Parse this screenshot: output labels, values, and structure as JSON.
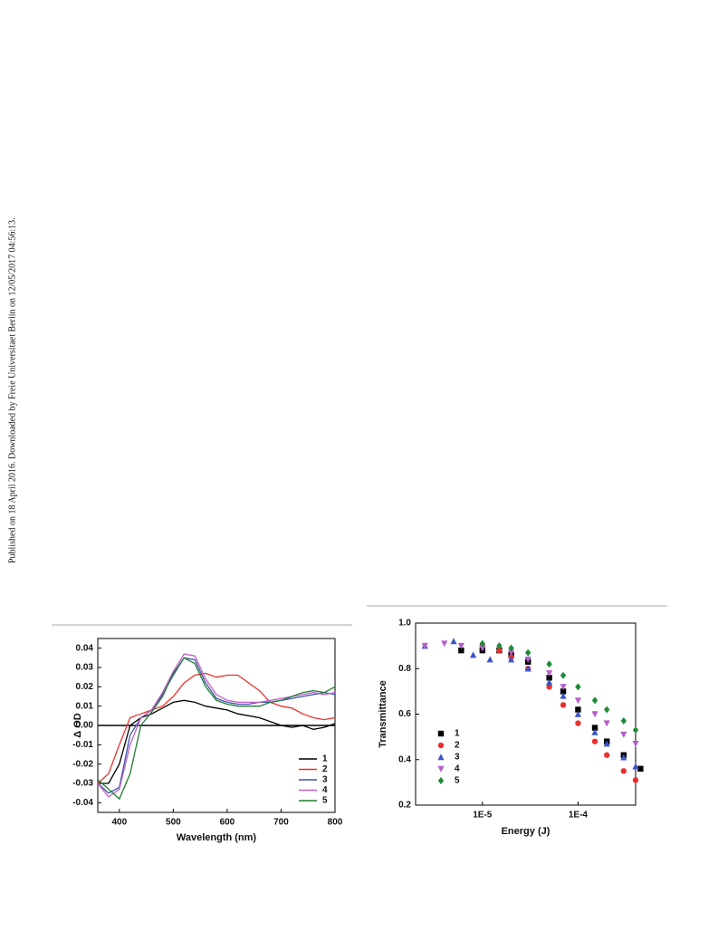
{
  "side_note": "Published on 18 April 2016. Downloaded by Freie Universitaet Berlin on 12/05/2017 04:56:13.",
  "chart_data": [
    {
      "type": "line",
      "x_label": "Wavelength (nm)",
      "y_label": "Δ OD",
      "x": [
        360,
        380,
        400,
        420,
        440,
        460,
        480,
        500,
        520,
        540,
        560,
        580,
        600,
        620,
        640,
        660,
        680,
        700,
        720,
        740,
        760,
        780,
        800
      ],
      "xlim": [
        360,
        800
      ],
      "xticks": [
        400,
        500,
        600,
        700,
        800
      ],
      "ylim": [
        -0.045,
        0.045
      ],
      "yticks": [
        -0.04,
        -0.03,
        -0.02,
        -0.01,
        {
          "value": 0,
          "label": "0.00"
        },
        0.01,
        0.02,
        0.03,
        0.04
      ],
      "zero_line": true,
      "series": [
        {
          "name": "1",
          "color": "#000000",
          "values": [
            -0.03,
            -0.03,
            -0.02,
            0,
            0.004,
            0.006,
            0.009,
            0.012,
            0.013,
            0.012,
            0.01,
            0.009,
            0.008,
            0.006,
            0.005,
            0.004,
            0.002,
            0,
            -0.001,
            0,
            -0.002,
            -0.001,
            0.001
          ]
        },
        {
          "name": "2",
          "color": "#e8312f",
          "values": [
            -0.03,
            -0.025,
            -0.01,
            0.004,
            0.006,
            0.008,
            0.01,
            0.015,
            0.022,
            0.026,
            0.027,
            0.025,
            0.026,
            0.026,
            0.022,
            0.018,
            0.012,
            0.01,
            0.009,
            0.006,
            0.004,
            0.003,
            0.004
          ]
        },
        {
          "name": "3",
          "color": "#3b55a8",
          "values": [
            -0.03,
            -0.035,
            -0.032,
            -0.005,
            0.004,
            0.008,
            0.016,
            0.026,
            0.035,
            0.034,
            0.022,
            0.014,
            0.012,
            0.011,
            0.011,
            0.012,
            0.012,
            0.013,
            0.014,
            0.015,
            0.016,
            0.017,
            0.016
          ]
        },
        {
          "name": "4",
          "color": "#c25ec9",
          "values": [
            -0.03,
            -0.037,
            -0.033,
            -0.01,
            0.004,
            0.008,
            0.017,
            0.028,
            0.037,
            0.036,
            0.024,
            0.016,
            0.013,
            0.012,
            0.012,
            0.012,
            0.013,
            0.014,
            0.015,
            0.016,
            0.017,
            0.016,
            0.017
          ]
        },
        {
          "name": "5",
          "color": "#1f7d2f",
          "values": [
            -0.028,
            -0.033,
            -0.038,
            -0.025,
            0,
            0.007,
            0.015,
            0.027,
            0.035,
            0.032,
            0.02,
            0.013,
            0.011,
            0.01,
            0.01,
            0.01,
            0.012,
            0.013,
            0.015,
            0.017,
            0.018,
            0.017,
            0.02
          ]
        }
      ]
    },
    {
      "type": "scatter",
      "x_label": "Energy (J)",
      "y_label": "Transmittance",
      "xscale": "log",
      "xlim": [
        2e-06,
        0.0004
      ],
      "xticks": [
        {
          "value": 1e-05,
          "label": "1E-5"
        },
        {
          "value": 0.0001,
          "label": "1E-4"
        }
      ],
      "ylim": [
        0.2,
        1.0
      ],
      "yticks": [
        0.2,
        0.4,
        0.6,
        0.8,
        {
          "value": 1.0,
          "label": "1.0"
        }
      ],
      "series": [
        {
          "name": "1",
          "color": "#000000",
          "marker": "square",
          "x": [
            6e-06,
            1e-05,
            1.5e-05,
            2e-05,
            3e-05,
            5e-05,
            7e-05,
            0.0001,
            0.00015,
            0.0002,
            0.0003,
            0.00045
          ],
          "values": [
            0.88,
            0.88,
            0.88,
            0.86,
            0.83,
            0.76,
            0.7,
            0.62,
            0.54,
            0.48,
            0.42,
            0.36
          ]
        },
        {
          "name": "2",
          "color": "#e8312f",
          "marker": "circle",
          "x": [
            1e-05,
            1.5e-05,
            2e-05,
            3e-05,
            5e-05,
            7e-05,
            0.0001,
            0.00015,
            0.0002,
            0.0003,
            0.0004
          ],
          "values": [
            0.9,
            0.88,
            0.85,
            0.8,
            0.72,
            0.64,
            0.56,
            0.48,
            0.42,
            0.35,
            0.31
          ]
        },
        {
          "name": "3",
          "color": "#3b55c8",
          "marker": "triangle",
          "x": [
            2.5e-06,
            5e-06,
            8e-06,
            1.2e-05,
            2e-05,
            3e-05,
            5e-05,
            7e-05,
            0.0001,
            0.00015,
            0.0002,
            0.0003,
            0.0004
          ],
          "values": [
            0.9,
            0.92,
            0.86,
            0.84,
            0.84,
            0.8,
            0.74,
            0.68,
            0.6,
            0.52,
            0.47,
            0.41,
            0.37
          ]
        },
        {
          "name": "4",
          "color": "#b65ecb",
          "marker": "triangle-down",
          "x": [
            2.5e-06,
            4e-06,
            6e-06,
            1e-05,
            2e-05,
            3e-05,
            5e-05,
            7e-05,
            0.0001,
            0.00015,
            0.0002,
            0.0003,
            0.0004
          ],
          "values": [
            0.9,
            0.91,
            0.9,
            0.89,
            0.87,
            0.84,
            0.78,
            0.72,
            0.66,
            0.6,
            0.56,
            0.51,
            0.47
          ]
        },
        {
          "name": "5",
          "color": "#1f8a3a",
          "marker": "diamond",
          "x": [
            1e-05,
            1.5e-05,
            2e-05,
            3e-05,
            5e-05,
            7e-05,
            0.0001,
            0.00015,
            0.0002,
            0.0003,
            0.0004
          ],
          "values": [
            0.91,
            0.9,
            0.89,
            0.87,
            0.82,
            0.77,
            0.72,
            0.66,
            0.62,
            0.57,
            0.53
          ]
        }
      ]
    }
  ]
}
